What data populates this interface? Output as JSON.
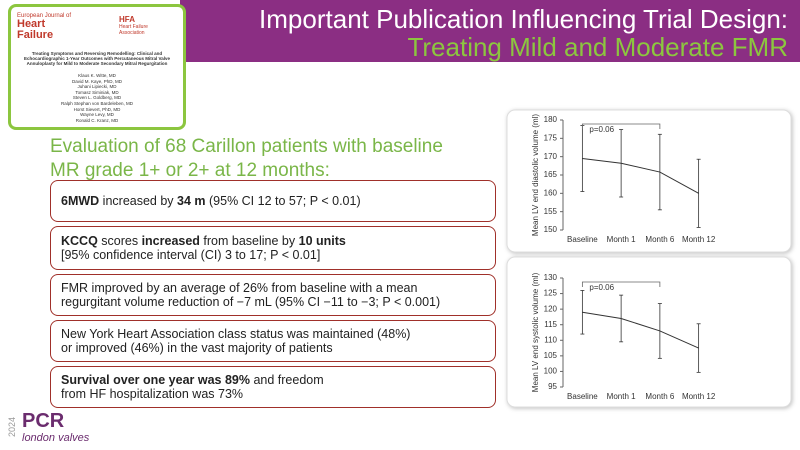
{
  "header": {
    "title": "Important Publication Influencing Trial Design:",
    "subtitle": "Treating Mild and Moderate FMR"
  },
  "paper": {
    "journal_prefix": "European Journal of",
    "journal_line1": "Heart",
    "journal_line2": "Failure",
    "society_short": "HFA",
    "society_line1": "Heart Failure",
    "society_line2": "Association",
    "title": "Treating Symptoms and Reversing Remodelling: Clinical and Echocardiographic 1-Year Outcomes with Percutaneous Mitral Valve Annuloplasty for Mild to Moderate Secondary Mitral Regurgitation",
    "authors": [
      "Klaus K. Witte, MD",
      "David M. Kaye, PhD, MD",
      "Juhani Lipiecki, MD",
      "Tomasz Siminiak, MD",
      "Steven L. Goldberg, MD",
      "Ralph Stephan von Bardeleben, MD",
      "Horst Sievert, PhD, MD",
      "Wayne Levy, MD",
      "Ronald C. Kranz, MD"
    ]
  },
  "intro": [
    "Evaluation of 68 Carillon patients with baseline",
    "MR grade 1+ or 2+ at 12 months:"
  ],
  "boxes": [
    {
      "lines": [
        [
          {
            "text": "6MWD",
            "bold": true
          },
          {
            "text": " increased by ",
            "bold": false
          },
          {
            "text": "34 m",
            "bold": true
          },
          {
            "text": " (95% CI 12 to 57; P < 0.01)",
            "bold": false
          }
        ]
      ]
    },
    {
      "lines": [
        [
          {
            "text": "KCCQ",
            "bold": true
          },
          {
            "text": " scores ",
            "bold": false
          },
          {
            "text": "increased",
            "bold": true
          },
          {
            "text": " from baseline by ",
            "bold": false
          },
          {
            "text": "10 units",
            "bold": true
          }
        ],
        [
          {
            "text": "[95% confidence interval (CI) 3 to 17; P < 0.01]",
            "bold": false
          }
        ]
      ]
    },
    {
      "lines": [
        [
          {
            "text": "FMR improved by an average of 26% from baseline with a mean",
            "bold": false
          }
        ],
        [
          {
            "text": "regurgitant volume reduction of −7 mL (95% CI −11 to −3; P < 0.001)",
            "bold": false
          }
        ]
      ]
    },
    {
      "lines": [
        [
          {
            "text": "New York Heart Association class status was maintained (48%)",
            "bold": false
          }
        ],
        [
          {
            "text": "or improved (46%) in the vast majority of patients",
            "bold": false
          }
        ]
      ]
    },
    {
      "lines": [
        [
          {
            "text": "Survival over one year was 89%",
            "bold": true
          },
          {
            "text": " and freedom",
            "bold": false
          }
        ],
        [
          {
            "text": "from HF hospitalization was 73%",
            "bold": false
          }
        ]
      ]
    }
  ],
  "chart_data": [
    {
      "type": "line",
      "y_label": "Mean LV end diastolic volume (ml)",
      "categories": [
        "Baseline",
        "Month 1",
        "Month 6",
        "Month 12"
      ],
      "values": [
        169.5,
        168.2,
        165.8,
        160
      ],
      "errors": [
        9,
        9.2,
        10.3,
        9.3
      ],
      "color": "#333333",
      "ylim": [
        150,
        180
      ],
      "yticks": [
        150,
        155,
        160,
        165,
        170,
        175,
        180
      ],
      "annotation": "p=0.06"
    },
    {
      "type": "line",
      "y_label": "Mean LV end systolic volume (ml)",
      "categories": [
        "Baseline",
        "Month 1",
        "Month 6",
        "Month 12"
      ],
      "values": [
        119,
        117,
        113,
        107.5
      ],
      "errors": [
        7,
        7.5,
        8.8,
        7.8
      ],
      "color": "#333333",
      "ylim": [
        95,
        130
      ],
      "yticks": [
        95,
        100,
        105,
        110,
        115,
        120,
        125,
        130
      ],
      "annotation": "p=0.06"
    }
  ],
  "footer": {
    "year": "2024",
    "brand": "PCR",
    "event": "london valves"
  }
}
